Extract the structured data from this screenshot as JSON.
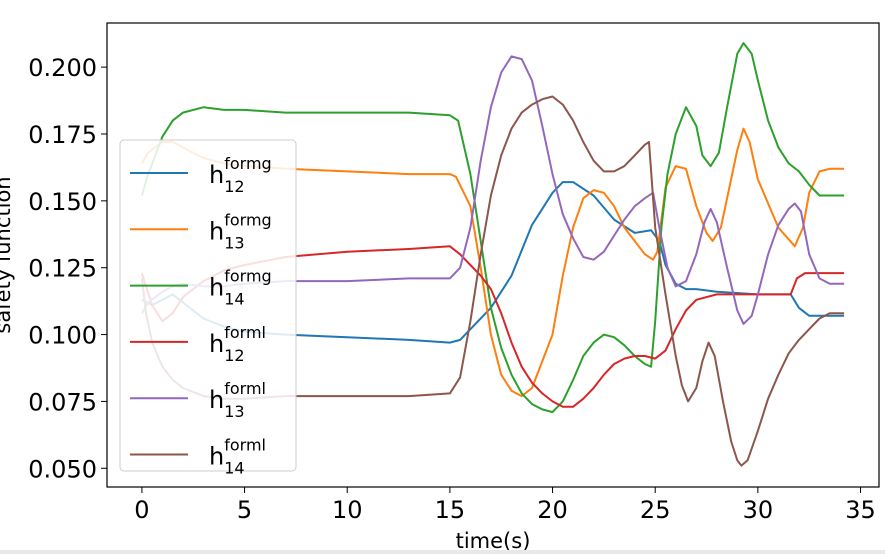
{
  "chart_data": {
    "type": "line",
    "xlabel": "time(s)",
    "ylabel": "safety function",
    "xlim": [
      -1.7,
      35.9
    ],
    "ylim": [
      0.043,
      0.2165
    ],
    "xticks": [
      0,
      5,
      10,
      15,
      20,
      25,
      30,
      35
    ],
    "yticks": [
      0.05,
      0.075,
      0.1,
      0.125,
      0.15,
      0.175,
      0.2
    ],
    "ytick_labels": [
      "0.050",
      "0.075",
      "0.100",
      "0.125",
      "0.150",
      "0.175",
      "0.200"
    ],
    "grid": false,
    "legend_position": "left",
    "series": [
      {
        "name": "h_12^formg",
        "base": "h",
        "sub": "12",
        "sup": "formg",
        "color": "#1f77b4",
        "points": [
          [
            0,
            0.113
          ],
          [
            0.5,
            0.111
          ],
          [
            1,
            0.113
          ],
          [
            1.5,
            0.115
          ],
          [
            2,
            0.112
          ],
          [
            3,
            0.106
          ],
          [
            4,
            0.103
          ],
          [
            5,
            0.101
          ],
          [
            7,
            0.1
          ],
          [
            10,
            0.099
          ],
          [
            13,
            0.098
          ],
          [
            15,
            0.097
          ],
          [
            15.5,
            0.098
          ],
          [
            16,
            0.102
          ],
          [
            17,
            0.11
          ],
          [
            18,
            0.122
          ],
          [
            19,
            0.141
          ],
          [
            20,
            0.153
          ],
          [
            20.5,
            0.157
          ],
          [
            21,
            0.157
          ],
          [
            22,
            0.152
          ],
          [
            23,
            0.143
          ],
          [
            24,
            0.138
          ],
          [
            24.8,
            0.139
          ],
          [
            25.2,
            0.135
          ],
          [
            25.5,
            0.126
          ],
          [
            26,
            0.119
          ],
          [
            26.5,
            0.117
          ],
          [
            27,
            0.117
          ],
          [
            28,
            0.116
          ],
          [
            30,
            0.115
          ],
          [
            31,
            0.115
          ],
          [
            31.6,
            0.115
          ],
          [
            32,
            0.11
          ],
          [
            32.5,
            0.107
          ],
          [
            34.2,
            0.107
          ]
        ]
      },
      {
        "name": "h_13^formg",
        "base": "h",
        "sub": "13",
        "sup": "formg",
        "color": "#ff7f0e",
        "points": [
          [
            0,
            0.164
          ],
          [
            0.3,
            0.168
          ],
          [
            1,
            0.172
          ],
          [
            1.5,
            0.172
          ],
          [
            2,
            0.17
          ],
          [
            3,
            0.166
          ],
          [
            4,
            0.164
          ],
          [
            5,
            0.163
          ],
          [
            7,
            0.162
          ],
          [
            10,
            0.161
          ],
          [
            13,
            0.16
          ],
          [
            15,
            0.16
          ],
          [
            15.3,
            0.159
          ],
          [
            16,
            0.148
          ],
          [
            16.5,
            0.125
          ],
          [
            17,
            0.1
          ],
          [
            17.5,
            0.085
          ],
          [
            18,
            0.079
          ],
          [
            18.5,
            0.077
          ],
          [
            19,
            0.08
          ],
          [
            20,
            0.1
          ],
          [
            20.5,
            0.122
          ],
          [
            21,
            0.14
          ],
          [
            21.5,
            0.151
          ],
          [
            22,
            0.154
          ],
          [
            22.5,
            0.153
          ],
          [
            23,
            0.148
          ],
          [
            23.5,
            0.14
          ],
          [
            24,
            0.135
          ],
          [
            24.5,
            0.13
          ],
          [
            24.9,
            0.128
          ],
          [
            25.1,
            0.131
          ],
          [
            25.5,
            0.155
          ],
          [
            26,
            0.163
          ],
          [
            26.5,
            0.162
          ],
          [
            27,
            0.148
          ],
          [
            27.5,
            0.138
          ],
          [
            27.8,
            0.135
          ],
          [
            28.2,
            0.14
          ],
          [
            29,
            0.169
          ],
          [
            29.3,
            0.177
          ],
          [
            29.6,
            0.172
          ],
          [
            30,
            0.158
          ],
          [
            31,
            0.14
          ],
          [
            31.8,
            0.133
          ],
          [
            32.2,
            0.14
          ],
          [
            32.5,
            0.153
          ],
          [
            33,
            0.161
          ],
          [
            33.5,
            0.162
          ],
          [
            34.2,
            0.162
          ]
        ]
      },
      {
        "name": "h_14^formg",
        "base": "h",
        "sub": "14",
        "sup": "formg",
        "color": "#2ca02c",
        "points": [
          [
            0,
            0.152
          ],
          [
            0.3,
            0.16
          ],
          [
            0.7,
            0.168
          ],
          [
            1,
            0.174
          ],
          [
            1.5,
            0.18
          ],
          [
            2,
            0.183
          ],
          [
            3,
            0.185
          ],
          [
            4,
            0.184
          ],
          [
            5,
            0.184
          ],
          [
            7,
            0.183
          ],
          [
            10,
            0.183
          ],
          [
            13,
            0.183
          ],
          [
            15,
            0.182
          ],
          [
            15.4,
            0.18
          ],
          [
            16,
            0.16
          ],
          [
            16.5,
            0.135
          ],
          [
            17,
            0.11
          ],
          [
            17.5,
            0.095
          ],
          [
            18,
            0.085
          ],
          [
            18.5,
            0.078
          ],
          [
            19,
            0.074
          ],
          [
            19.5,
            0.072
          ],
          [
            20,
            0.071
          ],
          [
            20.5,
            0.075
          ],
          [
            21,
            0.083
          ],
          [
            21.5,
            0.092
          ],
          [
            22,
            0.097
          ],
          [
            22.5,
            0.1
          ],
          [
            23,
            0.099
          ],
          [
            23.5,
            0.096
          ],
          [
            24,
            0.092
          ],
          [
            24.5,
            0.089
          ],
          [
            24.8,
            0.088
          ],
          [
            25,
            0.105
          ],
          [
            25.3,
            0.14
          ],
          [
            25.6,
            0.16
          ],
          [
            26,
            0.175
          ],
          [
            26.5,
            0.185
          ],
          [
            27,
            0.178
          ],
          [
            27.3,
            0.167
          ],
          [
            27.7,
            0.163
          ],
          [
            28.1,
            0.168
          ],
          [
            28.5,
            0.185
          ],
          [
            29,
            0.205
          ],
          [
            29.3,
            0.209
          ],
          [
            29.7,
            0.205
          ],
          [
            30,
            0.195
          ],
          [
            30.5,
            0.18
          ],
          [
            31,
            0.17
          ],
          [
            31.5,
            0.164
          ],
          [
            32,
            0.161
          ],
          [
            32.5,
            0.156
          ],
          [
            33,
            0.152
          ],
          [
            34.2,
            0.152
          ]
        ]
      },
      {
        "name": "h_12^forml",
        "base": "h",
        "sub": "12",
        "sup": "forml",
        "color": "#d62728",
        "points": [
          [
            0,
            0.123
          ],
          [
            0.2,
            0.118
          ],
          [
            0.5,
            0.111
          ],
          [
            1,
            0.105
          ],
          [
            1.5,
            0.108
          ],
          [
            2,
            0.114
          ],
          [
            3,
            0.12
          ],
          [
            4,
            0.124
          ],
          [
            5,
            0.126
          ],
          [
            7,
            0.129
          ],
          [
            10,
            0.131
          ],
          [
            13,
            0.132
          ],
          [
            15,
            0.133
          ],
          [
            15.5,
            0.13
          ],
          [
            16,
            0.126
          ],
          [
            16.5,
            0.122
          ],
          [
            17,
            0.117
          ],
          [
            17.5,
            0.108
          ],
          [
            18,
            0.097
          ],
          [
            18.5,
            0.088
          ],
          [
            19,
            0.082
          ],
          [
            19.5,
            0.078
          ],
          [
            20,
            0.075
          ],
          [
            20.5,
            0.073
          ],
          [
            21,
            0.073
          ],
          [
            21.5,
            0.076
          ],
          [
            22,
            0.08
          ],
          [
            22.5,
            0.085
          ],
          [
            23,
            0.089
          ],
          [
            23.5,
            0.091
          ],
          [
            24,
            0.092
          ],
          [
            24.5,
            0.092
          ],
          [
            25,
            0.091
          ],
          [
            25.5,
            0.094
          ],
          [
            26,
            0.102
          ],
          [
            26.5,
            0.109
          ],
          [
            27,
            0.113
          ],
          [
            28,
            0.115
          ],
          [
            29,
            0.115
          ],
          [
            30,
            0.115
          ],
          [
            31,
            0.115
          ],
          [
            31.6,
            0.115
          ],
          [
            31.9,
            0.121
          ],
          [
            32.3,
            0.123
          ],
          [
            34.2,
            0.123
          ]
        ]
      },
      {
        "name": "h_13^forml",
        "base": "h",
        "sub": "13",
        "sup": "forml",
        "color": "#9467bd",
        "points": [
          [
            0,
            0.108
          ],
          [
            0.3,
            0.112
          ],
          [
            1,
            0.116
          ],
          [
            1.5,
            0.118
          ],
          [
            2,
            0.119
          ],
          [
            3,
            0.118
          ],
          [
            4,
            0.118
          ],
          [
            5,
            0.119
          ],
          [
            7,
            0.12
          ],
          [
            10,
            0.12
          ],
          [
            13,
            0.121
          ],
          [
            15,
            0.121
          ],
          [
            15.5,
            0.125
          ],
          [
            16,
            0.14
          ],
          [
            16.5,
            0.165
          ],
          [
            17,
            0.185
          ],
          [
            17.5,
            0.198
          ],
          [
            18,
            0.204
          ],
          [
            18.5,
            0.203
          ],
          [
            19,
            0.195
          ],
          [
            19.5,
            0.178
          ],
          [
            20,
            0.16
          ],
          [
            20.5,
            0.145
          ],
          [
            21,
            0.136
          ],
          [
            21.5,
            0.129
          ],
          [
            22,
            0.128
          ],
          [
            22.5,
            0.131
          ],
          [
            23,
            0.137
          ],
          [
            23.5,
            0.143
          ],
          [
            24,
            0.148
          ],
          [
            24.5,
            0.151
          ],
          [
            24.9,
            0.153
          ],
          [
            25.2,
            0.14
          ],
          [
            25.6,
            0.125
          ],
          [
            26,
            0.118
          ],
          [
            26.5,
            0.12
          ],
          [
            27,
            0.13
          ],
          [
            27.4,
            0.142
          ],
          [
            27.7,
            0.147
          ],
          [
            28,
            0.142
          ],
          [
            28.5,
            0.125
          ],
          [
            29,
            0.109
          ],
          [
            29.3,
            0.104
          ],
          [
            29.7,
            0.107
          ],
          [
            30,
            0.115
          ],
          [
            30.5,
            0.13
          ],
          [
            31,
            0.141
          ],
          [
            31.5,
            0.147
          ],
          [
            31.8,
            0.149
          ],
          [
            32.1,
            0.146
          ],
          [
            32.5,
            0.13
          ],
          [
            33,
            0.121
          ],
          [
            33.5,
            0.119
          ],
          [
            34.2,
            0.119
          ]
        ]
      },
      {
        "name": "h_14^forml",
        "base": "h",
        "sub": "14",
        "sup": "forml",
        "color": "#8c564b",
        "points": [
          [
            0,
            0.121
          ],
          [
            0.2,
            0.108
          ],
          [
            0.5,
            0.097
          ],
          [
            1,
            0.088
          ],
          [
            1.5,
            0.083
          ],
          [
            2,
            0.08
          ],
          [
            3,
            0.077
          ],
          [
            4,
            0.076
          ],
          [
            5,
            0.076
          ],
          [
            7,
            0.077
          ],
          [
            10,
            0.077
          ],
          [
            13,
            0.077
          ],
          [
            15,
            0.078
          ],
          [
            15.5,
            0.084
          ],
          [
            16,
            0.105
          ],
          [
            16.5,
            0.13
          ],
          [
            17,
            0.152
          ],
          [
            17.5,
            0.167
          ],
          [
            18,
            0.177
          ],
          [
            18.5,
            0.183
          ],
          [
            19,
            0.186
          ],
          [
            19.5,
            0.188
          ],
          [
            20,
            0.189
          ],
          [
            20.5,
            0.186
          ],
          [
            21,
            0.18
          ],
          [
            21.5,
            0.172
          ],
          [
            22,
            0.165
          ],
          [
            22.5,
            0.161
          ],
          [
            23,
            0.161
          ],
          [
            23.5,
            0.163
          ],
          [
            24,
            0.167
          ],
          [
            24.5,
            0.171
          ],
          [
            24.7,
            0.172
          ],
          [
            25,
            0.14
          ],
          [
            25.5,
            0.115
          ],
          [
            26,
            0.092
          ],
          [
            26.3,
            0.081
          ],
          [
            26.6,
            0.075
          ],
          [
            27,
            0.08
          ],
          [
            27.3,
            0.09
          ],
          [
            27.6,
            0.097
          ],
          [
            27.9,
            0.092
          ],
          [
            28.3,
            0.075
          ],
          [
            28.7,
            0.06
          ],
          [
            29,
            0.053
          ],
          [
            29.2,
            0.051
          ],
          [
            29.5,
            0.053
          ],
          [
            30,
            0.064
          ],
          [
            30.5,
            0.076
          ],
          [
            31,
            0.085
          ],
          [
            31.5,
            0.093
          ],
          [
            32,
            0.098
          ],
          [
            32.5,
            0.102
          ],
          [
            33,
            0.106
          ],
          [
            33.5,
            0.108
          ],
          [
            34.2,
            0.108
          ]
        ]
      }
    ]
  }
}
